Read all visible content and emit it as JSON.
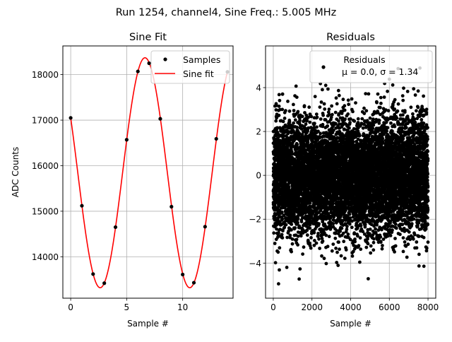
{
  "suptitle": "Run 1254, channel4, Sine Freq.: 5.005 MHz",
  "chart_data": [
    {
      "type": "line",
      "title": "Sine Fit",
      "xlabel": "Sample #",
      "ylabel": "ADC Counts",
      "xlim": [
        -0.7,
        14.5
      ],
      "ylim": [
        13090,
        18630
      ],
      "xticks": [
        0,
        5,
        10
      ],
      "xtick_labels": [
        "0",
        "5",
        "10"
      ],
      "yticks": [
        14000,
        15000,
        16000,
        17000,
        18000
      ],
      "ytick_labels": [
        "14000",
        "15000",
        "16000",
        "17000",
        "18000"
      ],
      "grid": true,
      "legend": {
        "placement": "top-right",
        "entries": [
          "Samples",
          "Sine fit"
        ]
      },
      "series": [
        {
          "name": "Samples",
          "kind": "scatter",
          "color": "#000000",
          "x": [
            0,
            1,
            2,
            3,
            4,
            5,
            6,
            7,
            8,
            9,
            10,
            11,
            12,
            13,
            14
          ],
          "y": [
            17050,
            15120,
            13620,
            13420,
            14650,
            16570,
            18070,
            18250,
            17030,
            15100,
            13610,
            13430,
            14660,
            16590,
            18060
          ]
        },
        {
          "name": "Sine fit",
          "kind": "line",
          "color": "#ff0000",
          "model": {
            "offset": 15845,
            "amplitude": 2525,
            "period_samples": 8.0,
            "phase_rad": 2.644
          }
        }
      ]
    },
    {
      "type": "scatter",
      "title": "Residuals",
      "xlabel": "Sample #",
      "ylabel": "",
      "xlim": [
        -400,
        8400
      ],
      "ylim": [
        -5.6,
        5.9
      ],
      "xticks": [
        0,
        2000,
        4000,
        6000,
        8000
      ],
      "xtick_labels": [
        "0",
        "2000",
        "4000",
        "6000",
        "8000"
      ],
      "yticks": [
        -4,
        -2,
        0,
        2,
        4
      ],
      "ytick_labels": [
        "−4",
        "−2",
        "0",
        "2",
        "4"
      ],
      "grid": true,
      "legend": {
        "placement": "top-right",
        "entries": [
          "Residuals",
          "μ = 0.0, σ = 1.34"
        ]
      },
      "series": [
        {
          "name": "Residuals",
          "kind": "scatter",
          "color": "#000000",
          "n_points": 8000,
          "mu": 0.0,
          "sigma": 1.34
        }
      ]
    }
  ]
}
